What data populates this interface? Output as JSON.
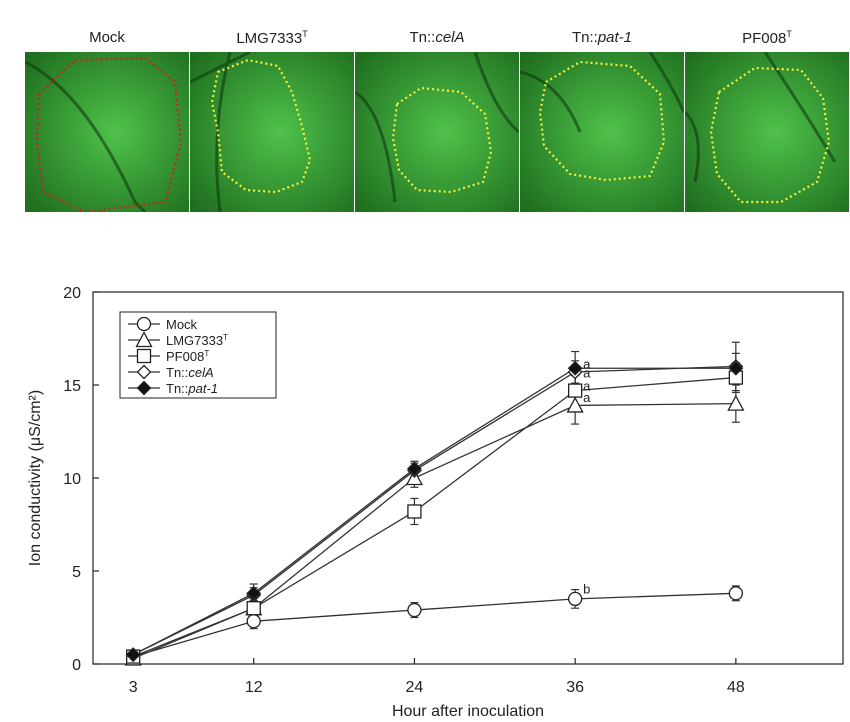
{
  "panels": [
    {
      "label_main": "Mock",
      "label_sup": "",
      "label_italic": ""
    },
    {
      "label_main": "LMG7333",
      "label_sup": "T",
      "label_italic": ""
    },
    {
      "label_main": "Tn::",
      "label_sup": "",
      "label_italic": "celA"
    },
    {
      "label_main": "Tn::",
      "label_sup": "",
      "label_italic": "pat-1"
    },
    {
      "label_main": "PF008",
      "label_sup": "T",
      "label_italic": ""
    }
  ],
  "colors": {
    "leaf_dark": "#1f6e1f",
    "leaf_light": "#4fc24a",
    "outline_red": "#d0201a",
    "outline_yellow": "#f2f03a"
  },
  "chart_data": {
    "type": "line",
    "xlabel": "Hour after inoculation",
    "ylabel": "Ion conductivity (μS/cm²)",
    "x": [
      3,
      12,
      24,
      36,
      48
    ],
    "xticks": [
      "3",
      "12",
      "24",
      "36",
      "48"
    ],
    "ylim": [
      0,
      20
    ],
    "yticks": [
      "0",
      "5",
      "10",
      "15",
      "20"
    ],
    "legend_position": "top-left",
    "series": [
      {
        "name": "Mock",
        "name_sup": "",
        "marker": "circle-open",
        "values": [
          0.4,
          2.3,
          2.9,
          3.5,
          3.8
        ],
        "errors": [
          0.2,
          0.4,
          0.4,
          0.5,
          0.4
        ]
      },
      {
        "name": "LMG7333",
        "name_sup": "T",
        "marker": "triangle-open",
        "values": [
          0.3,
          3.0,
          10.0,
          13.9,
          14.0
        ],
        "errors": [
          0.2,
          0.4,
          0.5,
          1.0,
          1.0
        ]
      },
      {
        "name": "PF008",
        "name_sup": "T",
        "marker": "square-open",
        "values": [
          0.4,
          3.0,
          8.2,
          14.7,
          15.4
        ],
        "errors": [
          0.2,
          0.4,
          0.7,
          0.8,
          0.8
        ]
      },
      {
        "name": "Tn::celA",
        "name_sup": "",
        "marker": "diamond-open",
        "values": [
          0.5,
          3.7,
          10.4,
          15.7,
          16.0
        ],
        "errors": [
          0.2,
          0.4,
          0.4,
          0.6,
          1.3
        ]
      },
      {
        "name": "Tn::pat-1",
        "name_sup": "",
        "marker": "diamond-filled",
        "values": [
          0.5,
          3.8,
          10.5,
          15.9,
          15.9
        ],
        "errors": [
          0.2,
          0.5,
          0.4,
          0.9,
          0.8
        ]
      }
    ],
    "annotations": [
      {
        "text": "a",
        "x": 36,
        "y": 16.0
      },
      {
        "text": "a",
        "x": 36,
        "y": 15.5
      },
      {
        "text": "a",
        "x": 36,
        "y": 14.8
      },
      {
        "text": "a",
        "x": 36,
        "y": 14.2
      },
      {
        "text": "b",
        "x": 36,
        "y": 3.9
      }
    ]
  }
}
